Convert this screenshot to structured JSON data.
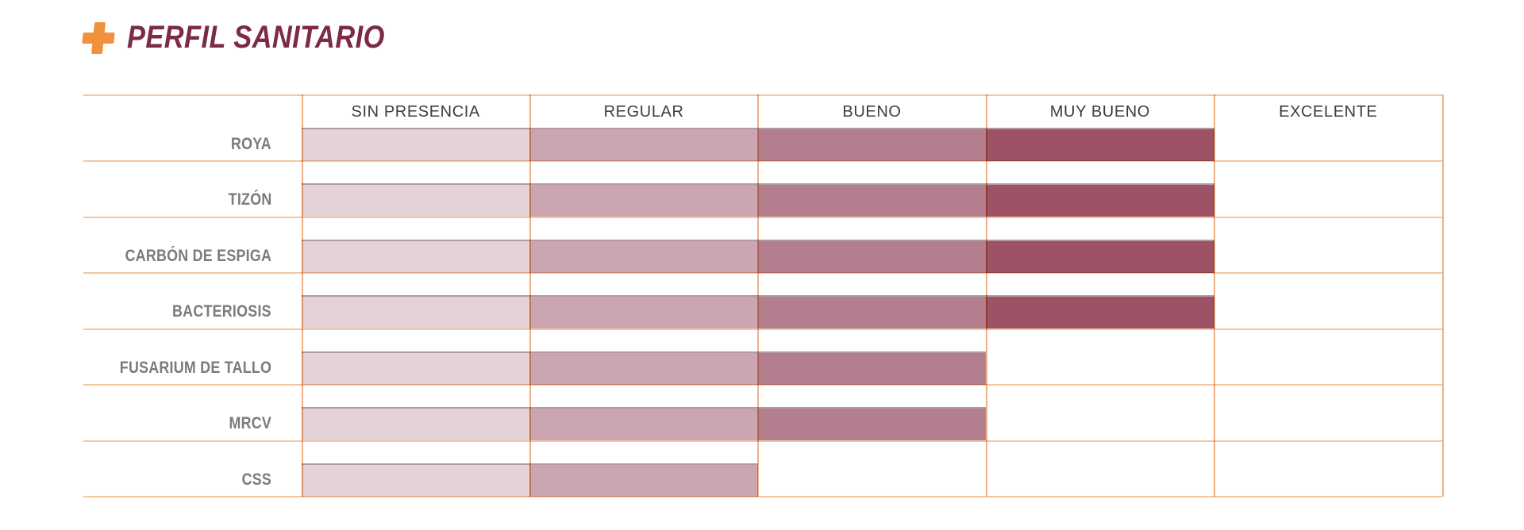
{
  "header": {
    "title": "PERFIL SANITARIO",
    "icon": "plus-icon",
    "title_color": "#7d2a46",
    "icon_color": "#f0923d"
  },
  "chart_data": {
    "type": "bar",
    "variant": "horizontal-rating-scale-stacked",
    "title": "PERFIL SANITARIO",
    "scale": [
      "SIN PRESENCIA",
      "REGULAR",
      "BUENO",
      "MUY BUENO",
      "EXCELENTE"
    ],
    "scale_range": [
      0,
      5
    ],
    "rows": [
      {
        "label": "ROYA",
        "rating": "MUY BUENO",
        "level": 4
      },
      {
        "label": "TIZÓN",
        "rating": "MUY BUENO",
        "level": 4
      },
      {
        "label": "CARBÓN DE ESPIGA",
        "rating": "MUY BUENO",
        "level": 4
      },
      {
        "label": "BACTERIOSIS",
        "rating": "MUY BUENO",
        "level": 4
      },
      {
        "label": "FUSARIUM DE TALLO",
        "rating": "BUENO",
        "level": 3
      },
      {
        "label": "MRCV",
        "rating": "BUENO",
        "level": 3
      },
      {
        "label": "CSS",
        "rating": "REGULAR",
        "level": 2
      }
    ],
    "segment_colors": [
      "#e4d2d7",
      "#cba6b0",
      "#b37f8e",
      "#9d5266"
    ],
    "grid": "on",
    "grid_color_horizontal": "#f5c79e",
    "grid_color_vertical": "#f0b184",
    "header_text_color": "#3e3e3e",
    "row_label_color": "#7b7b7b",
    "legend_position": "none",
    "xlabel": "",
    "ylabel": ""
  }
}
